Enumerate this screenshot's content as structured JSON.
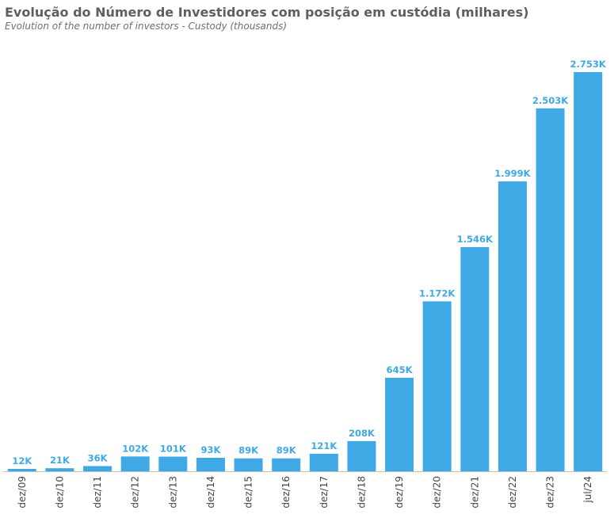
{
  "header": {
    "title": "Evolução do Número de Investidores com posição em custódia (milhares)",
    "subtitle": "Evolution of the number of investors - Custody (thousands)"
  },
  "colors": {
    "bar": "#3fa9e6",
    "label": "#3fa9e6",
    "axis": "#bfbfbf"
  },
  "chart_data": {
    "type": "bar",
    "title": "Evolução do Número de Investidores com posição em custódia (milhares)",
    "subtitle": "Evolution of the number of investors - Custody (thousands)",
    "xlabel": "",
    "ylabel": "",
    "categories": [
      "dez/09",
      "dez/10",
      "dez/11",
      "dez/12",
      "dez/13",
      "dez/14",
      "dez/15",
      "dez/16",
      "dez/17",
      "dez/18",
      "dez/19",
      "dez/20",
      "dez/21",
      "dez/22",
      "dez/23",
      "jul/24"
    ],
    "values": [
      12,
      21,
      36,
      102,
      101,
      93,
      89,
      89,
      121,
      208,
      645,
      1172,
      1546,
      1999,
      2503,
      2753
    ],
    "data_labels": [
      "12K",
      "21K",
      "36K",
      "102K",
      "101K",
      "93K",
      "89K",
      "89K",
      "121K",
      "208K",
      "645K",
      "1.172K",
      "1.546K",
      "1.999K",
      "2.503K",
      "2.753K"
    ],
    "ylim": [
      0,
      2753
    ],
    "grid": false,
    "legend": "none"
  }
}
